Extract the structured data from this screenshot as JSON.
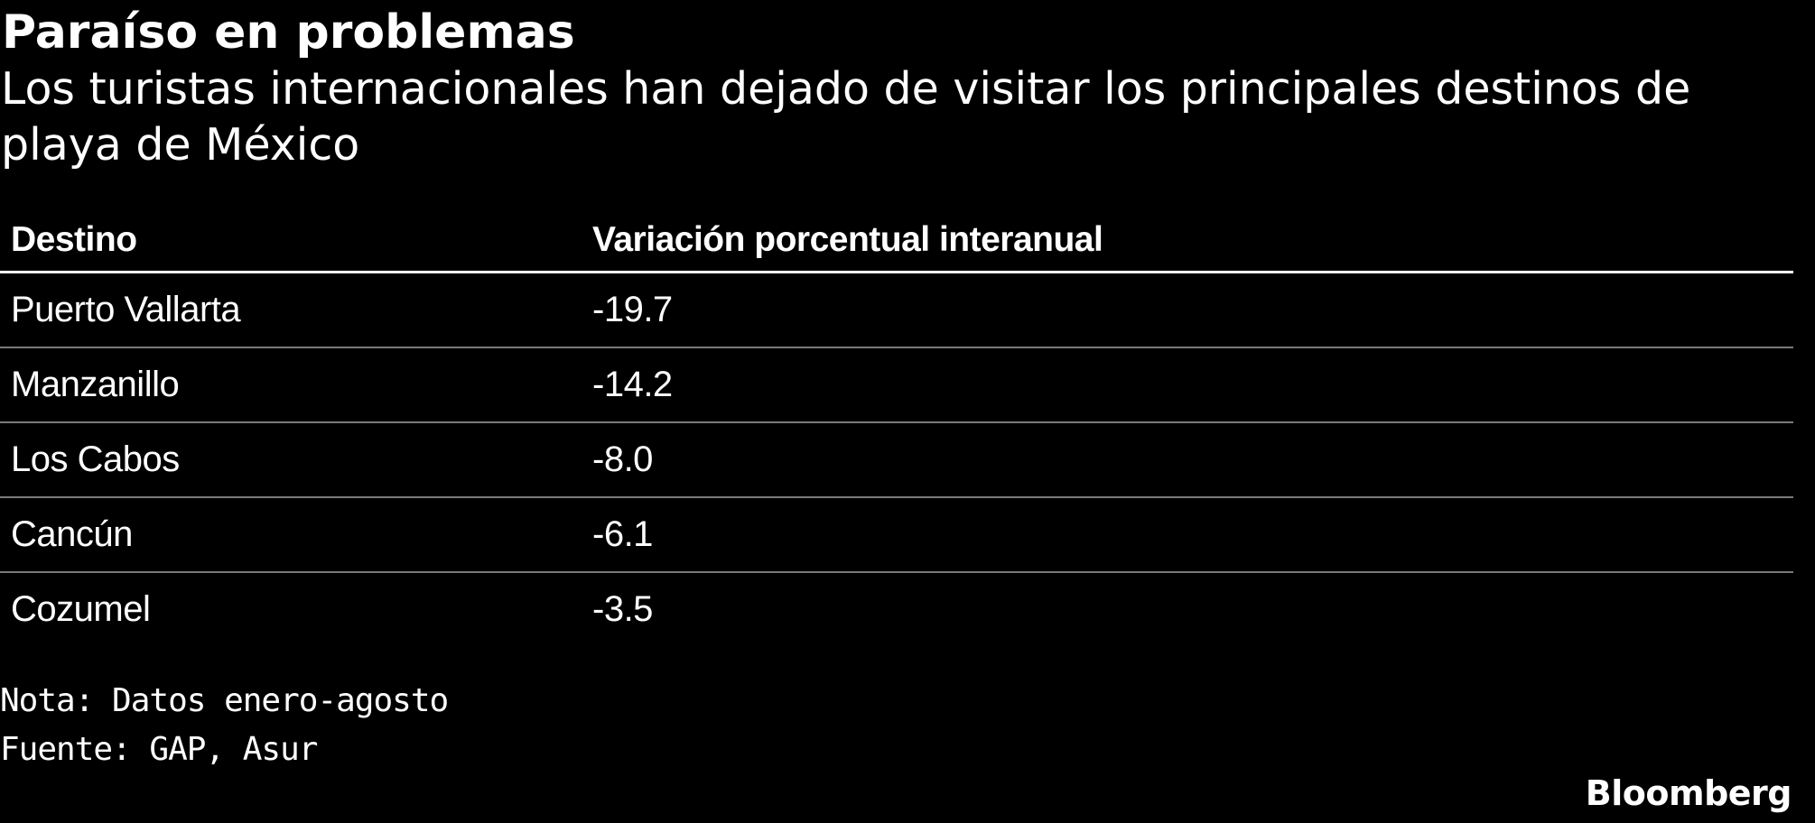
{
  "chart_data": {
    "type": "table",
    "title": "Paraíso en problemas",
    "subtitle": "Los turistas internacionales han dejado de visitar los principales destinos de playa de México",
    "columns": [
      "Destino",
      "Variación porcentual interanual"
    ],
    "rows": [
      {
        "destino": "Puerto Vallarta",
        "variacion": "-19.7"
      },
      {
        "destino": "Manzanillo",
        "variacion": "-14.2"
      },
      {
        "destino": "Los Cabos",
        "variacion": "-8.0"
      },
      {
        "destino": "Cancún",
        "variacion": "-6.1"
      },
      {
        "destino": "Cozumel",
        "variacion": "-3.5"
      }
    ],
    "note": "Nota: Datos enero-agosto",
    "source": "Fuente: GAP, Asur"
  },
  "brand": {
    "logo_text": "Bloomberg"
  },
  "colors": {
    "background": "#000000",
    "text": "#ffffff",
    "header_rule": "#ffffff",
    "row_rule": "#7a7a7a"
  }
}
